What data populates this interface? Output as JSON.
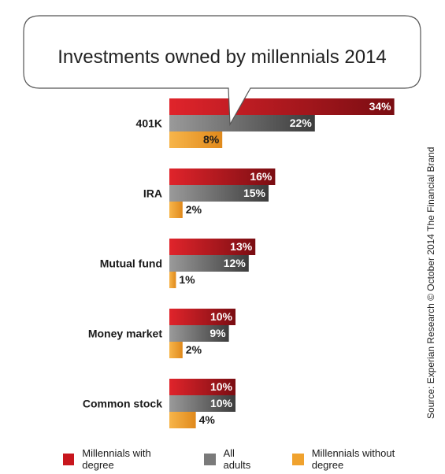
{
  "chart_data": {
    "type": "bar",
    "orientation": "horizontal",
    "title": "Investments owned by millennials 2014",
    "categories": [
      "401K",
      "IRA",
      "Mutual fund",
      "Money market",
      "Common stock"
    ],
    "series": [
      {
        "name": "Millennials with degree",
        "values": [
          34,
          16,
          13,
          10,
          10
        ],
        "color": "#c8161d"
      },
      {
        "name": "All adults",
        "values": [
          22,
          15,
          12,
          9,
          10
        ],
        "color": "#7a7a7a"
      },
      {
        "name": "Millennials without degree",
        "values": [
          8,
          2,
          1,
          2,
          4
        ],
        "color": "#f0a22e"
      }
    ],
    "value_suffix": "%",
    "xlim": [
      0,
      40
    ],
    "grid": false,
    "legend_position": "bottom",
    "source": "Source: Experian Research © October 2014 The Financial Brand"
  }
}
